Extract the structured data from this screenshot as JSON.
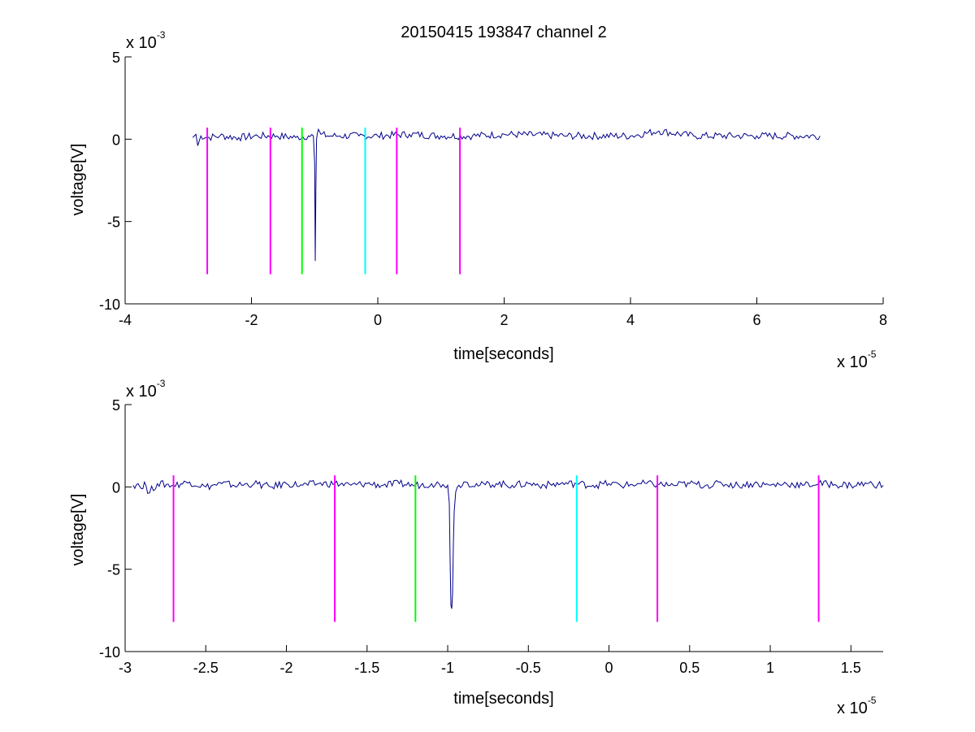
{
  "chart_data": [
    {
      "type": "line",
      "title": "20150415 193847 channel 2",
      "xlabel": "time[seconds]",
      "ylabel": "voltage[V]",
      "xlim": [
        -4,
        8
      ],
      "ylim": [
        -10,
        5
      ],
      "x_ticks": [
        -4,
        -2,
        0,
        2,
        4,
        6,
        8
      ],
      "x_tick_labels": [
        "-4",
        "-2",
        "0",
        "2",
        "4",
        "6",
        "8"
      ],
      "y_ticks": [
        -10,
        -5,
        0,
        5
      ],
      "y_tick_labels": [
        "-10",
        "-5",
        "0",
        "5"
      ],
      "x_multiplier": {
        "base": "x 10",
        "exp": "-5"
      },
      "y_multiplier": {
        "base": "x 10",
        "exp": "-3"
      },
      "grid": false,
      "series": [
        {
          "color": "#00008b",
          "x": [
            -2.93,
            -2.88,
            -2.85,
            -2.8,
            -2.7,
            -2.5,
            -2.2,
            -1.9,
            -1.6,
            -1.3,
            -1.1,
            -1.02,
            -1.0,
            -0.99,
            -0.98,
            -0.97,
            -0.96,
            -0.94,
            -0.9,
            -0.8,
            -0.6,
            -0.3,
            0.0,
            0.5,
            1.0,
            1.5,
            2.0,
            3.0,
            4.0,
            4.45,
            5.0,
            6.0,
            7.0
          ],
          "y": [
            0.1,
            0.3,
            -0.4,
            0.2,
            0.1,
            0.2,
            0.1,
            0.2,
            0.2,
            0.1,
            0.2,
            0.2,
            -1.5,
            -7.4,
            -3.0,
            0.0,
            0.3,
            0.6,
            0.3,
            0.2,
            0.2,
            0.2,
            0.2,
            0.3,
            0.2,
            0.2,
            0.3,
            0.2,
            0.2,
            0.5,
            0.2,
            0.2,
            0.2
          ]
        }
      ],
      "markers": [
        {
          "x": -2.7,
          "color": "#ff00ff",
          "y_range": [
            -8.2,
            0.7
          ]
        },
        {
          "x": -1.7,
          "color": "#ff00ff",
          "y_range": [
            -8.2,
            0.7
          ]
        },
        {
          "x": -1.2,
          "color": "#00ff00",
          "y_range": [
            -8.2,
            0.7
          ]
        },
        {
          "x": -0.2,
          "color": "#00ffff",
          "y_range": [
            -8.2,
            0.7
          ]
        },
        {
          "x": 0.3,
          "color": "#ff00ff",
          "y_range": [
            -8.2,
            0.7
          ]
        },
        {
          "x": 1.3,
          "color": "#ff00ff",
          "y_range": [
            -8.2,
            0.7
          ]
        }
      ]
    },
    {
      "type": "line",
      "title": "",
      "xlabel": "time[seconds]",
      "ylabel": "voltage[V]",
      "xlim": [
        -3.0,
        1.7
      ],
      "ylim": [
        -10,
        5
      ],
      "x_ticks": [
        -3,
        -2.5,
        -2,
        -1.5,
        -1,
        -0.5,
        0,
        0.5,
        1,
        1.5
      ],
      "x_tick_labels": [
        "-3",
        "-2.5",
        "-2",
        "-1.5",
        "-1",
        "-0.5",
        "0",
        "0.5",
        "1",
        "1.5"
      ],
      "y_ticks": [
        -10,
        -5,
        0,
        5
      ],
      "y_tick_labels": [
        "-10",
        "-5",
        "0",
        "5"
      ],
      "x_multiplier": {
        "base": "x 10",
        "exp": "-5"
      },
      "y_multiplier": {
        "base": "x 10",
        "exp": "-3"
      },
      "grid": false,
      "series": [
        {
          "color": "#00008b",
          "x": [
            -2.95,
            -2.92,
            -2.9,
            -2.88,
            -2.86,
            -2.8,
            -2.7,
            -2.6,
            -2.5,
            -2.4,
            -2.3,
            -2.2,
            -2.1,
            -2.0,
            -1.9,
            -1.8,
            -1.7,
            -1.6,
            -1.5,
            -1.4,
            -1.3,
            -1.2,
            -1.1,
            -1.03,
            -1.0,
            -0.99,
            -0.985,
            -0.98,
            -0.975,
            -0.97,
            -0.965,
            -0.96,
            -0.95,
            -0.93,
            -0.9,
            -0.8,
            -0.7,
            -0.6,
            -0.5,
            -0.4,
            -0.3,
            -0.2,
            -0.1,
            0.0,
            0.1,
            0.2,
            0.3,
            0.4,
            0.5,
            0.6,
            0.7,
            0.8,
            0.9,
            1.0,
            1.1,
            1.2,
            1.3,
            1.4,
            1.5,
            1.6,
            1.7
          ],
          "y": [
            0.1,
            0.2,
            -0.1,
            0.3,
            -0.4,
            0.2,
            0.1,
            0.3,
            0.0,
            0.2,
            0.1,
            0.2,
            0.0,
            0.2,
            0.1,
            0.2,
            0.2,
            0.1,
            0.2,
            0.1,
            0.2,
            0.1,
            0.2,
            0.15,
            0.1,
            -1.0,
            -4.5,
            -7.2,
            -7.4,
            -6.5,
            -3.5,
            -1.5,
            -0.3,
            0.1,
            0.3,
            0.1,
            0.2,
            0.1,
            0.2,
            0.1,
            0.2,
            0.2,
            0.1,
            0.2,
            0.1,
            0.2,
            0.15,
            0.1,
            0.2,
            0.1,
            0.2,
            0.1,
            0.2,
            0.1,
            0.2,
            0.1,
            0.2,
            0.15,
            0.1,
            0.2,
            0.1
          ]
        }
      ],
      "markers": [
        {
          "x": -2.7,
          "color": "#ff00ff",
          "y_range": [
            -8.2,
            0.7
          ]
        },
        {
          "x": -1.7,
          "color": "#ff00ff",
          "y_range": [
            -8.2,
            0.7
          ]
        },
        {
          "x": -1.2,
          "color": "#00ff00",
          "y_range": [
            -8.2,
            0.7
          ]
        },
        {
          "x": -0.2,
          "color": "#00ffff",
          "y_range": [
            -8.2,
            0.7
          ]
        },
        {
          "x": 0.3,
          "color": "#ff00ff",
          "y_range": [
            -8.2,
            0.7
          ]
        },
        {
          "x": 1.3,
          "color": "#ff00ff",
          "y_range": [
            -8.2,
            0.7
          ]
        }
      ]
    }
  ]
}
